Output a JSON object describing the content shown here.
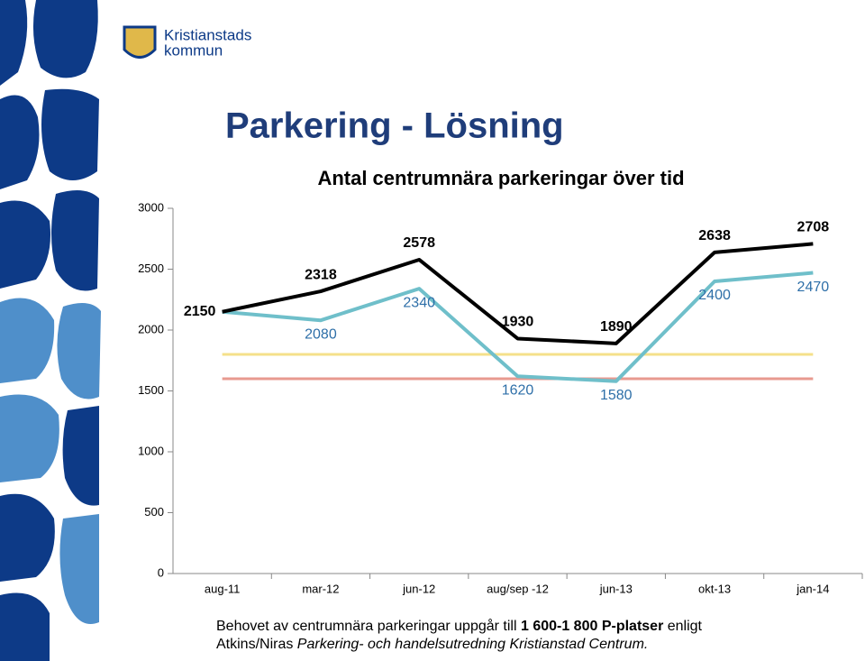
{
  "header": {
    "logo_line1": "Kristianstads",
    "logo_line2": "kommun",
    "title": "Parkering - Lösning"
  },
  "chart_data": {
    "type": "line",
    "title": "Antal centrumnära parkeringar över tid",
    "categories": [
      "aug-11",
      "mar-12",
      "jun-12",
      "aug/sep -12",
      "jun-13",
      "okt-13",
      "jan-14"
    ],
    "series": [
      {
        "color": "#000000",
        "values": [
          2150,
          2318,
          2578,
          1930,
          1890,
          2638,
          2708
        ]
      },
      {
        "color": "#6fbfca",
        "values": [
          2150,
          2080,
          2340,
          1620,
          1580,
          2400,
          2470
        ]
      }
    ],
    "reference_lines": [
      {
        "value": 1800,
        "color": "#f5e08a"
      },
      {
        "value": 1600,
        "color": "#e89a90"
      }
    ],
    "ylim": [
      0,
      3000
    ],
    "yticks": [
      0,
      500,
      1000,
      1500,
      2000,
      2500,
      3000
    ],
    "grid": false
  },
  "footnote": {
    "line1_start": "Behovet av centrumnära parkeringar uppgår till ",
    "line1_bold": "1 600-1 800 P-platser",
    "line1_end": " enligt",
    "line2_start": "Atkins/Niras ",
    "line2_italic": "Parkering- och handelsutredning Kristianstad Centrum."
  }
}
